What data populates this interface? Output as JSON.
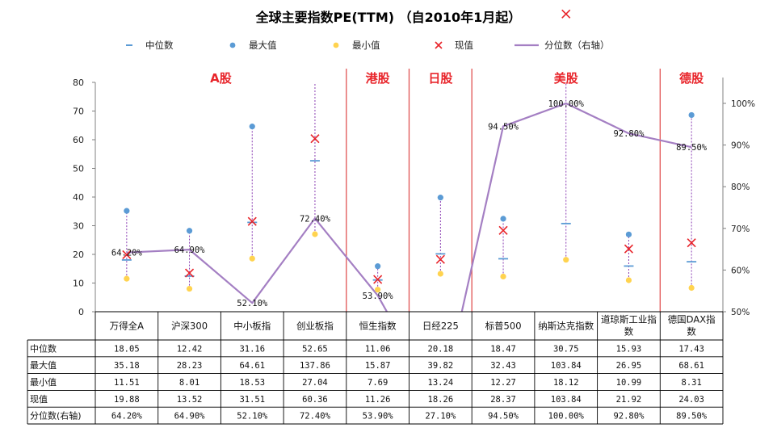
{
  "chart_data": {
    "type": "composite",
    "title": "全球主要指数PE(TTM) （自2010年1月起）",
    "legend": {
      "placement": "top",
      "items": [
        {
          "key": "median",
          "label": "中位数",
          "color": "#5b9bd5",
          "marker": "dash"
        },
        {
          "key": "max",
          "label": "最大值",
          "color": "#5b9bd5",
          "marker": "dot"
        },
        {
          "key": "min",
          "label": "最小值",
          "color": "#ffd34f",
          "marker": "dot"
        },
        {
          "key": "current",
          "label": "现值",
          "color": "#e8242a",
          "marker": "cross"
        },
        {
          "key": "pct",
          "label": "分位数（右轴）",
          "color": "#a47fc3",
          "marker": "line"
        }
      ]
    },
    "categories": [
      "万得全A",
      "沪深300",
      "中小板指",
      "创业板指",
      "恒生指数",
      "日经225",
      "标普500",
      "纳斯达克指数",
      "道琼斯工业指数",
      "德国DAX指数"
    ],
    "series": [
      {
        "key": "median",
        "name": "中位数",
        "values": [
          18.05,
          12.42,
          31.16,
          52.65,
          11.06,
          20.18,
          18.47,
          30.75,
          15.93,
          17.43
        ],
        "display": [
          "18.05",
          "12.42",
          "31.16",
          "52.65",
          "11.06",
          "20.18",
          "18.47",
          "30.75",
          "15.93",
          "17.43"
        ]
      },
      {
        "key": "max",
        "name": "最大值",
        "values": [
          35.18,
          28.23,
          64.61,
          137.86,
          15.87,
          39.82,
          32.43,
          103.84,
          26.95,
          68.61
        ],
        "display": [
          "35.18",
          "28.23",
          "64.61",
          "137.86",
          "15.87",
          "39.82",
          "32.43",
          "103.84",
          "26.95",
          "68.61"
        ]
      },
      {
        "key": "min",
        "name": "最小值",
        "values": [
          11.51,
          8.01,
          18.53,
          27.04,
          7.69,
          13.24,
          12.27,
          18.12,
          10.99,
          8.31
        ],
        "display": [
          "11.51",
          "8.01",
          "18.53",
          "27.04",
          "7.69",
          "13.24",
          "12.27",
          "18.12",
          "10.99",
          "8.31"
        ]
      },
      {
        "key": "current",
        "name": "现值",
        "values": [
          19.88,
          13.52,
          31.51,
          60.36,
          11.26,
          18.26,
          28.37,
          103.84,
          21.92,
          24.03
        ],
        "display": [
          "19.88",
          "13.52",
          "31.51",
          "60.36",
          "11.26",
          "18.26",
          "28.37",
          "103.84",
          "21.92",
          "24.03"
        ]
      },
      {
        "key": "pct",
        "name": "分位数（右轴）",
        "values": [
          64.2,
          64.9,
          52.1,
          72.4,
          53.9,
          27.1,
          94.5,
          100.0,
          92.8,
          89.5
        ],
        "display": [
          "64.20%",
          "64.90%",
          "52.10%",
          "72.40%",
          "53.90%",
          "27.10%",
          "94.50%",
          "100.00%",
          "92.80%",
          "89.50%"
        ]
      }
    ],
    "groups": [
      {
        "label": "A股",
        "from": 0,
        "to": 3
      },
      {
        "label": "港股",
        "from": 4,
        "to": 4
      },
      {
        "label": "日股",
        "from": 5,
        "to": 5
      },
      {
        "label": "美股",
        "from": 6,
        "to": 8
      },
      {
        "label": "德股",
        "from": 9,
        "to": 9
      }
    ],
    "y_left": {
      "min": 0,
      "max": 80,
      "ticks": [
        "0",
        "10",
        "20",
        "30",
        "40",
        "50",
        "60",
        "70",
        "80"
      ]
    },
    "y_right": {
      "min": 50,
      "max": 105,
      "ticks": [
        "50%",
        "60%",
        "70%",
        "80%",
        "90%",
        "100%"
      ]
    },
    "grid": false,
    "table_row_labels": [
      "中位数",
      "最大值",
      "最小值",
      "现值",
      "分位数(右轴)"
    ],
    "colors": {
      "median": "#5b9bd5",
      "max": "#5b9bd5",
      "min": "#ffd34f",
      "current": "#e8242a",
      "pct": "#a47fc3",
      "range_line": "#8b3fb3",
      "group_divider": "#e05252",
      "group_label": "#e8242a"
    }
  }
}
